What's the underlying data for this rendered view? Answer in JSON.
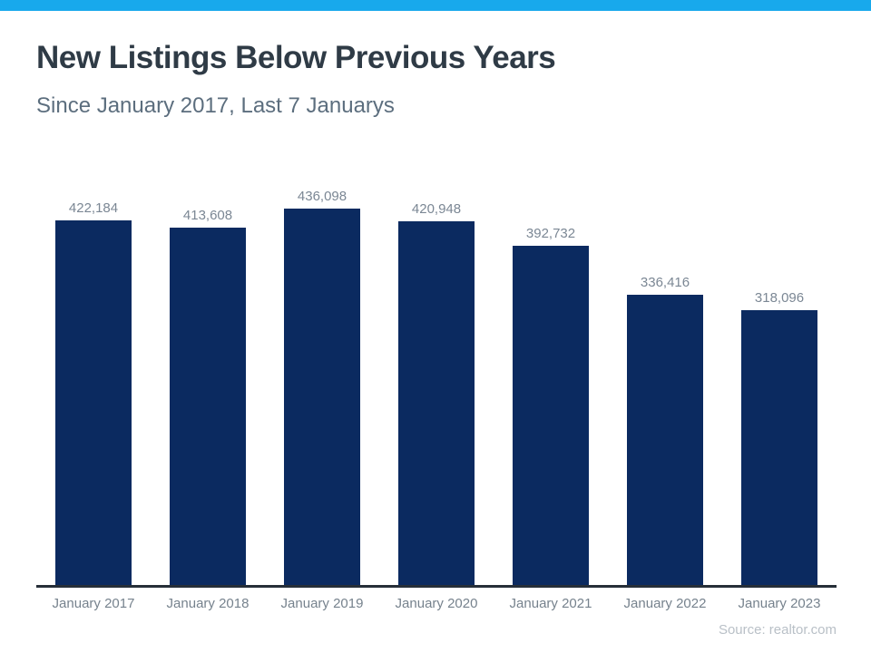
{
  "theme": {
    "accent_color": "#18A9EC",
    "bar_color": "#0B2A60",
    "title_color": "#2F3B46",
    "subtitle_color": "#5C6E7E",
    "value_label_color": "#7B8794",
    "tick_label_color": "#76828D",
    "axis_line_color": "#262E38",
    "source_color": "#B9C0C7"
  },
  "header": {
    "title": "New Listings Below Previous Years",
    "subtitle": "Since January 2017, Last 7 Januarys"
  },
  "chart_data": {
    "type": "bar",
    "title": "New Listings Below Previous Years",
    "subtitle": "Since January 2017, Last 7 Januarys",
    "categories": [
      "January 2017",
      "January 2018",
      "January 2019",
      "January 2020",
      "January 2021",
      "January 2022",
      "January 2023"
    ],
    "values": [
      422184,
      413608,
      436098,
      420948,
      392732,
      336416,
      318096
    ],
    "value_labels": [
      "422,184",
      "413,608",
      "436,098",
      "420,948",
      "392,732",
      "336,416",
      "318,096"
    ],
    "xlabel": "",
    "ylabel": "",
    "ylim": [
      0,
      436098
    ],
    "grid": false,
    "legend": false,
    "bar_color": "#0B2A60"
  },
  "footer": {
    "source": "Source: realtor.com"
  }
}
